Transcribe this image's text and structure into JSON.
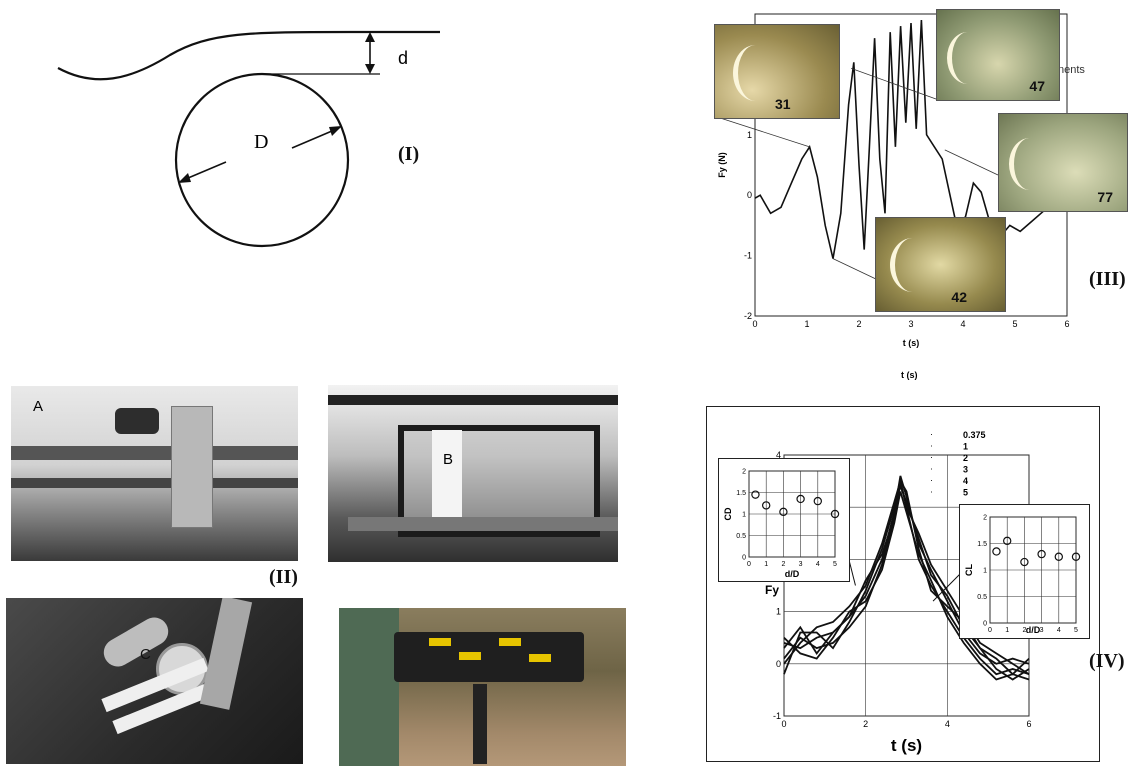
{
  "panel_I": {
    "label": "(I)",
    "d_label": "d",
    "D_label": "D"
  },
  "panel_II": {
    "label": "(II)",
    "photo_a_label": "A",
    "photo_b_label": "B",
    "photo_c_label": "C"
  },
  "panel_III": {
    "label": "(III)",
    "stray_caption": "t (s)",
    "partial_legend_text": "nents",
    "snapshots": [
      "31",
      "47",
      "77",
      "42"
    ],
    "chart_data": {
      "type": "line",
      "xlabel": "t (s)",
      "ylabel": "Fy (N)",
      "xlim": [
        0,
        6
      ],
      "ylim": [
        -2,
        3
      ],
      "xticks": [
        "0",
        "1",
        "2",
        "3",
        "4",
        "5",
        "6"
      ],
      "yticks": [
        "-2",
        "-1",
        "0",
        "1"
      ],
      "series": [
        {
          "x": [
            0,
            0.1,
            0.3,
            0.5,
            0.7,
            0.9,
            1.05,
            1.2,
            1.35,
            1.5,
            1.65,
            1.8,
            1.9,
            2.0,
            2.1,
            2.2,
            2.3,
            2.4,
            2.5,
            2.6,
            2.7,
            2.8,
            2.9,
            3.0,
            3.1,
            3.2,
            3.3,
            3.45,
            3.6,
            3.75,
            3.9,
            4.05,
            4.2,
            4.35,
            4.5,
            4.7,
            4.9,
            5.1,
            5.3,
            5.5,
            5.7,
            5.9,
            6.0
          ],
          "y": [
            -0.05,
            0.0,
            -0.3,
            -0.2,
            0.2,
            0.6,
            0.8,
            0.3,
            -0.5,
            -1.05,
            -0.3,
            1.5,
            2.2,
            0.5,
            -0.9,
            0.8,
            2.6,
            0.6,
            -0.3,
            2.7,
            0.8,
            2.8,
            1.2,
            2.85,
            1.1,
            2.9,
            1.0,
            0.8,
            0.6,
            0.0,
            -0.6,
            -0.35,
            0.2,
            0.05,
            -0.4,
            -0.7,
            -0.5,
            -0.6,
            -0.45,
            -0.3,
            -0.15,
            -0.15,
            -0.1
          ]
        }
      ]
    }
  },
  "panel_IV": {
    "label": "(IV)",
    "chart_data": [
      {
        "type": "line",
        "xlabel": "t (s)",
        "ylabel": "Fy",
        "xlim": [
          0,
          6
        ],
        "ylim": [
          -1,
          4
        ],
        "xticks": [
          "0",
          "2",
          "4",
          "6"
        ],
        "yticks": [
          "-1",
          "0",
          "1",
          "2",
          "3",
          "4"
        ],
        "legend": [
          "0.375",
          "1",
          "2",
          "3",
          "4",
          "5"
        ],
        "series": [
          {
            "name": "0.375",
            "x": [
              0,
              0.4,
              0.8,
              1.2,
              1.6,
              2.0,
              2.4,
              2.7,
              2.85,
              3.0,
              3.3,
              3.6,
              4.0,
              4.4,
              4.8,
              5.2,
              5.6,
              6.0
            ],
            "y": [
              0.4,
              0.3,
              0.5,
              0.6,
              0.9,
              1.3,
              2.0,
              2.9,
              3.6,
              3.2,
              2.3,
              1.8,
              1.2,
              0.6,
              0.2,
              0.0,
              0.1,
              0.0
            ]
          },
          {
            "name": "1",
            "x": [
              0,
              0.4,
              0.8,
              1.2,
              1.6,
              2.0,
              2.4,
              2.7,
              2.85,
              3.0,
              3.3,
              3.6,
              4.0,
              4.4,
              4.8,
              5.2,
              5.6,
              6.0
            ],
            "y": [
              0.1,
              0.5,
              0.3,
              0.4,
              0.7,
              1.1,
              1.9,
              2.8,
              3.5,
              3.0,
              2.0,
              1.5,
              1.0,
              0.5,
              0.1,
              -0.2,
              -0.1,
              -0.2
            ]
          },
          {
            "name": "2",
            "x": [
              0,
              0.4,
              0.8,
              1.2,
              1.6,
              2.0,
              2.4,
              2.7,
              2.85,
              3.0,
              3.3,
              3.6,
              4.0,
              4.4,
              4.8,
              5.2,
              5.6,
              6.0
            ],
            "y": [
              -0.2,
              0.6,
              0.6,
              0.3,
              0.8,
              1.4,
              2.2,
              3.0,
              3.4,
              3.1,
              2.4,
              1.7,
              1.3,
              0.7,
              0.3,
              -0.1,
              -0.3,
              -0.1
            ]
          },
          {
            "name": "3",
            "x": [
              0,
              0.4,
              0.8,
              1.2,
              1.6,
              2.0,
              2.4,
              2.7,
              2.85,
              3.0,
              3.3,
              3.6,
              4.0,
              4.4,
              4.8,
              5.2,
              5.6,
              6.0
            ],
            "y": [
              0.5,
              0.2,
              0.1,
              0.5,
              1.0,
              1.2,
              1.8,
              2.7,
              3.3,
              2.9,
              2.1,
              1.6,
              0.9,
              0.4,
              0.0,
              -0.3,
              -0.2,
              -0.3
            ]
          },
          {
            "name": "4",
            "x": [
              0,
              0.4,
              0.8,
              1.2,
              1.6,
              2.0,
              2.4,
              2.7,
              2.85,
              3.0,
              3.3,
              3.6,
              4.0,
              4.4,
              4.8,
              5.2,
              5.6,
              6.0
            ],
            "y": [
              0.3,
              0.7,
              0.2,
              0.6,
              0.9,
              1.6,
              2.1,
              2.8,
              3.5,
              3.3,
              2.2,
              1.4,
              1.1,
              0.8,
              0.3,
              0.1,
              -0.2,
              0.1
            ]
          },
          {
            "name": "5",
            "x": [
              0,
              0.4,
              0.8,
              1.2,
              1.6,
              2.0,
              2.4,
              2.7,
              2.85,
              3.0,
              3.3,
              3.6,
              4.0,
              4.4,
              4.8,
              5.2,
              5.6,
              6.0
            ],
            "y": [
              0.0,
              0.4,
              0.7,
              0.8,
              1.1,
              1.5,
              2.3,
              3.1,
              3.5,
              3.0,
              2.5,
              1.9,
              1.4,
              0.9,
              0.4,
              0.2,
              0.0,
              -0.2
            ]
          }
        ]
      },
      {
        "type": "scatter",
        "xlabel": "d/D",
        "ylabel": "CD",
        "xlim": [
          0,
          5
        ],
        "ylim": [
          0,
          2
        ],
        "xticks": [
          "0",
          "1",
          "2",
          "3",
          "4",
          "5"
        ],
        "yticks": [
          "0",
          "0.5",
          "1",
          "1.5",
          "2"
        ],
        "x": [
          0.375,
          1,
          2,
          3,
          4,
          5
        ],
        "y": [
          1.45,
          1.2,
          1.05,
          1.35,
          1.3,
          1.0
        ]
      },
      {
        "type": "scatter",
        "xlabel": "d/D",
        "ylabel": "CL",
        "xlim": [
          0,
          5
        ],
        "ylim": [
          0,
          2
        ],
        "xticks": [
          "0",
          "1",
          "2",
          "3",
          "4",
          "5"
        ],
        "yticks": [
          "0",
          "0.5",
          "1",
          "1.5",
          "2"
        ],
        "x": [
          0.375,
          1,
          2,
          3,
          4,
          5
        ],
        "y": [
          1.35,
          1.55,
          1.15,
          1.3,
          1.25,
          1.25
        ]
      }
    ]
  }
}
